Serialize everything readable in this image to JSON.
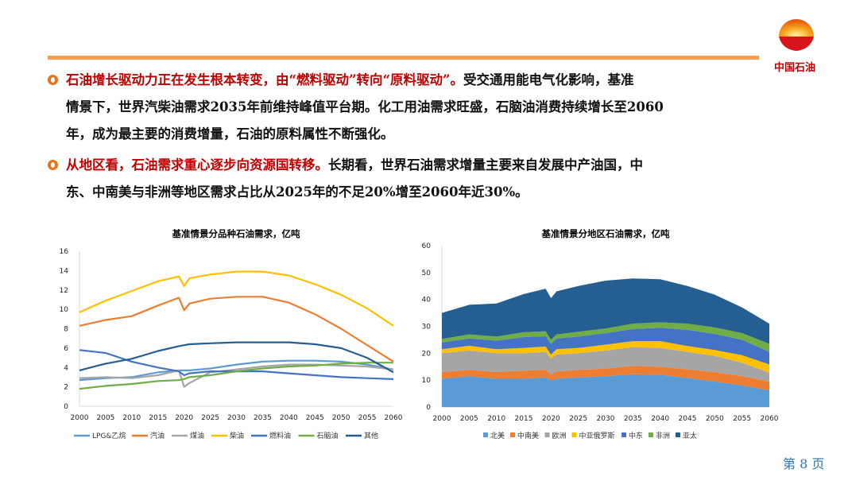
{
  "logo": {
    "text": "中国石油"
  },
  "bullets": [
    {
      "lead": "石油增长驱动力正在发生根本转变，由“燃料驱动”转向“原料驱动”。",
      "lines": [
        "受交通用能电气化影响，基准",
        "情景下，世界汽柴油需求2035年前维持峰值平台期。化工用油需求旺盛，石脑油消费持续增长至2060",
        "年，成为最主要的消费增量，石油的原料属性不断强化。"
      ]
    },
    {
      "lead": "从地区看，石油需求重心逐步向资源国转移。",
      "lines": [
        "长期看，世界石油需求增量主要来自发展中产油国，中",
        "东、中南美与非洲等地区需求占比从2025年的不足20%增至2060年近30%。"
      ]
    }
  ],
  "page": "第 8 页",
  "chart_data": [
    {
      "type": "line",
      "title": "基准情景分品种石油需求，亿吨",
      "ylim": [
        0,
        16
      ],
      "yticks": [
        0,
        2,
        4,
        6,
        8,
        10,
        12,
        14,
        16
      ],
      "xticks": [
        2000,
        2005,
        2010,
        2015,
        2020,
        2025,
        2030,
        2035,
        2040,
        2045,
        2050,
        2055,
        2060
      ],
      "x": [
        2000,
        2005,
        2010,
        2015,
        2019,
        2020,
        2021,
        2025,
        2030,
        2035,
        2040,
        2045,
        2050,
        2055,
        2060
      ],
      "legend": "bottom",
      "series": [
        {
          "name": "LPG&乙烷",
          "color": "#5b9bd5",
          "values": [
            2.7,
            2.9,
            3.0,
            3.5,
            3.7,
            3.7,
            3.7,
            3.9,
            4.3,
            4.6,
            4.7,
            4.7,
            4.6,
            4.3,
            3.8
          ]
        },
        {
          "name": "汽油",
          "color": "#ed7d31",
          "values": [
            8.3,
            8.9,
            9.3,
            10.4,
            11.2,
            9.9,
            10.6,
            11.1,
            11.3,
            11.3,
            10.7,
            9.5,
            8.0,
            6.3,
            4.6
          ]
        },
        {
          "name": "煤油",
          "color": "#a5a5a5",
          "values": [
            2.9,
            3.0,
            2.9,
            3.2,
            3.7,
            2.0,
            2.4,
            3.5,
            3.8,
            4.1,
            4.3,
            4.3,
            4.2,
            4.1,
            3.8
          ]
        },
        {
          "name": "柴油",
          "color": "#ffc000",
          "values": [
            9.7,
            10.9,
            11.9,
            12.9,
            13.4,
            12.4,
            13.2,
            13.6,
            13.9,
            13.9,
            13.5,
            12.6,
            11.5,
            10.1,
            8.3
          ]
        },
        {
          "name": "燃料油",
          "color": "#4472c4",
          "values": [
            5.8,
            5.5,
            4.6,
            4.0,
            3.6,
            3.2,
            3.4,
            3.6,
            3.6,
            3.6,
            3.4,
            3.2,
            3.0,
            2.9,
            2.8
          ]
        },
        {
          "name": "石脑油",
          "color": "#70ad47",
          "values": [
            1.8,
            2.1,
            2.3,
            2.6,
            2.7,
            2.8,
            3.0,
            3.2,
            3.6,
            3.9,
            4.1,
            4.2,
            4.4,
            4.5,
            4.5
          ]
        },
        {
          "name": "其他",
          "color": "#255e91",
          "values": [
            3.7,
            4.4,
            4.9,
            5.7,
            6.2,
            6.3,
            6.4,
            6.5,
            6.6,
            6.6,
            6.6,
            6.4,
            6.0,
            5.0,
            3.5
          ]
        }
      ]
    },
    {
      "type": "area",
      "stacked": true,
      "title": "基准情景分地区石油需求，亿吨",
      "ylim": [
        0,
        60
      ],
      "yticks": [
        0,
        10,
        20,
        30,
        40,
        50,
        60
      ],
      "xticks": [
        2000,
        2005,
        2010,
        2015,
        2020,
        2025,
        2030,
        2035,
        2040,
        2045,
        2050,
        2055,
        2060
      ],
      "x": [
        2000,
        2005,
        2010,
        2015,
        2019,
        2020,
        2021,
        2025,
        2030,
        2035,
        2040,
        2045,
        2050,
        2055,
        2060
      ],
      "legend": "bottom",
      "series": [
        {
          "name": "北美",
          "color": "#5b9bd5",
          "values": [
            10.5,
            11.5,
            10.5,
            10.5,
            11,
            10,
            10.5,
            11,
            11.5,
            12.2,
            12,
            10.8,
            9.5,
            8,
            6.2
          ]
        },
        {
          "name": "中南美",
          "color": "#ed7d31",
          "values": [
            2.5,
            2.3,
            2.5,
            3,
            2.9,
            2,
            2.7,
            2.8,
            2.8,
            3.1,
            3,
            3.2,
            3.5,
            3.5,
            3.3
          ]
        },
        {
          "name": "欧洲",
          "color": "#a5a5a5",
          "values": [
            7,
            7.2,
            7,
            6.5,
            6.6,
            6,
            6.3,
            6.2,
            6.7,
            7,
            7,
            6.5,
            6,
            5,
            3.3
          ]
        },
        {
          "name": "中亚俄罗斯",
          "color": "#ffc000",
          "values": [
            1.5,
            1.8,
            1.5,
            2,
            2,
            1.5,
            2,
            2,
            2.2,
            2.2,
            2.5,
            2.2,
            2.2,
            2.8,
            3
          ]
        },
        {
          "name": "中东",
          "color": "#4472c4",
          "values": [
            2.5,
            2.7,
            3.2,
            4,
            3.8,
            4,
            4,
            4.2,
            4.3,
            4.5,
            5,
            6,
            6,
            5.7,
            4.7
          ]
        },
        {
          "name": "非洲",
          "color": "#70ad47",
          "values": [
            1.3,
            1.5,
            1.5,
            1.8,
            1.9,
            1.5,
            1.5,
            1.8,
            1.7,
            2,
            2,
            2.3,
            2.4,
            2.5,
            3
          ]
        },
        {
          "name": "亚太",
          "color": "#255e91",
          "values": [
            9.7,
            11,
            12.3,
            14.2,
            15.8,
            15.5,
            16,
            17,
            17.8,
            16.8,
            16,
            14,
            12.2,
            9.5,
            7.5
          ]
        }
      ]
    }
  ]
}
